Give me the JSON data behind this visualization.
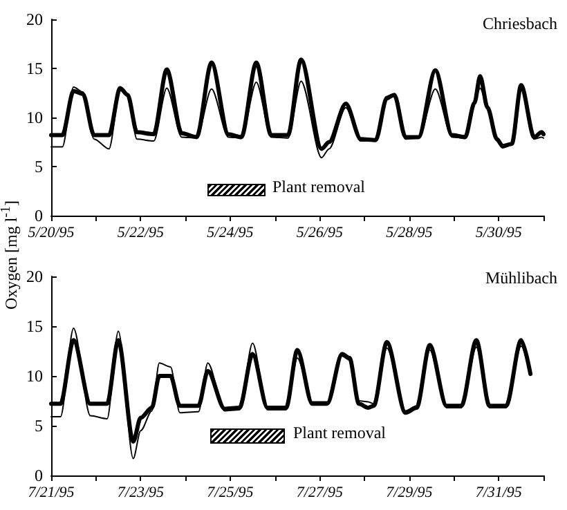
{
  "chart_data": [
    {
      "type": "line",
      "title": "Chriesbach",
      "ylabel": "Oxygen [mg l$^{-1}$]",
      "annotations": [
        "Plant removal"
      ],
      "x": [
        "1995-05-20T00:00",
        "1995-05-20T06:00",
        "1995-05-20T12:00",
        "1995-05-20T17:00",
        "1995-05-20T23:00",
        "1995-05-21T07:00",
        "1995-05-21T13:00",
        "1995-05-21T17:00",
        "1995-05-21T22:00",
        "1995-05-22T07:00",
        "1995-05-22T14:00",
        "1995-05-22T22:00",
        "1995-05-23T06:00",
        "1995-05-23T14:00",
        "1995-05-23T23:00",
        "1995-05-24T06:00",
        "1995-05-24T14:00",
        "1995-05-24T22:00",
        "1995-05-25T07:00",
        "1995-05-25T14:00",
        "1995-05-26T01:00",
        "1995-05-26T05:00",
        "1995-05-26T14:00",
        "1995-05-26T22:00",
        "1995-05-27T06:00",
        "1995-05-27T12:00",
        "1995-05-27T16:00",
        "1995-05-27T22:00",
        "1995-05-28T05:00",
        "1995-05-28T14:00",
        "1995-05-28T23:00",
        "1995-05-29T06:00",
        "1995-05-29T11:00",
        "1995-05-29T14:00",
        "1995-05-29T18:00",
        "1995-05-29T23:00",
        "1995-05-30T02:00",
        "1995-05-30T07:00",
        "1995-05-30T12:00",
        "1995-05-30T19:00",
        "1995-05-30T23:00",
        "1995-05-31T00:00"
      ],
      "series": [
        {
          "color": "#000000",
          "values": [
            8.2,
            8.2,
            12.7,
            12.4,
            8.2,
            8.2,
            13.0,
            12.3,
            8.5,
            8.3,
            14.9,
            8.4,
            8.0,
            15.6,
            8.3,
            8.0,
            15.6,
            8.2,
            8.2,
            15.9,
            6.8,
            7.5,
            11.4,
            7.8,
            7.7,
            12.0,
            12.3,
            8.0,
            8.0,
            14.8,
            8.2,
            8.0,
            11.5,
            14.2,
            11.0,
            7.8,
            7.1,
            7.3,
            13.3,
            8.0,
            8.5,
            8.3
          ]
        },
        {
          "color": "#000000",
          "values": [
            7.0,
            7.0,
            13.1,
            12.6,
            7.8,
            6.8,
            12.8,
            12.2,
            7.8,
            7.6,
            13.0,
            8.0,
            7.9,
            12.9,
            8.0,
            7.9,
            13.6,
            8.0,
            7.9,
            13.7,
            5.9,
            6.8,
            11.0,
            7.6,
            7.6,
            11.8,
            12.2,
            7.8,
            7.9,
            12.9,
            8.0,
            7.9,
            11.7,
            13.0,
            11.2,
            7.6,
            6.9,
            7.2,
            13.0,
            7.8,
            8.0,
            7.9
          ]
        }
      ],
      "xlim": [
        "1995-05-20",
        "1995-05-31"
      ],
      "xticks": [
        {
          "value": "1995-05-20",
          "label": "5/20/95"
        },
        {
          "value": "1995-05-21",
          "label": null
        },
        {
          "value": "1995-05-22",
          "label": "5/22/95"
        },
        {
          "value": "1995-05-23",
          "label": null
        },
        {
          "value": "1995-05-24",
          "label": "5/24/95"
        },
        {
          "value": "1995-05-25",
          "label": null
        },
        {
          "value": "1995-05-26",
          "label": "5/26/95"
        },
        {
          "value": "1995-05-27",
          "label": null
        },
        {
          "value": "1995-05-28",
          "label": "5/28/95"
        },
        {
          "value": "1995-05-29",
          "label": null
        },
        {
          "value": "1995-05-30",
          "label": "5/30/95"
        },
        {
          "value": "1995-05-31",
          "label": null
        }
      ],
      "ylim": [
        0,
        20
      ],
      "yticks": [
        0,
        5,
        10,
        15,
        20
      ],
      "grid": false,
      "marker": "none",
      "line_style": "solid"
    },
    {
      "type": "line",
      "title": "Mühlibach",
      "annotations": [
        "Plant removal"
      ],
      "x": [
        "1995-07-21T00:00",
        "1995-07-21T05:00",
        "1995-07-21T12:00",
        "1995-07-21T21:00",
        "1995-07-22T06:00",
        "1995-07-22T12:00",
        "1995-07-22T20:00",
        "1995-07-23T00:00",
        "1995-07-23T06:00",
        "1995-07-23T10:00",
        "1995-07-23T16:00",
        "1995-07-23T21:00",
        "1995-07-24T07:00",
        "1995-07-24T12:00",
        "1995-07-24T21:00",
        "1995-07-25T05:00",
        "1995-07-25T12:00",
        "1995-07-25T20:00",
        "1995-07-26T06:00",
        "1995-07-26T12:00",
        "1995-07-26T20:00",
        "1995-07-27T04:00",
        "1995-07-27T12:00",
        "1995-07-27T16:00",
        "1995-07-27T21:00",
        "1995-07-28T02:00",
        "1995-07-28T05:00",
        "1995-07-28T12:00",
        "1995-07-28T22:00",
        "1995-07-29T04:00",
        "1995-07-29T11:00",
        "1995-07-29T20:00",
        "1995-07-30T04:00",
        "1995-07-30T12:00",
        "1995-07-30T19:00",
        "1995-07-31T04:00",
        "1995-07-31T12:00",
        "1995-07-31T17:00"
      ],
      "series": [
        {
          "color": "#000000",
          "values": [
            7.2,
            7.2,
            13.6,
            7.2,
            7.2,
            13.6,
            3.4,
            5.8,
            6.8,
            10.0,
            10.0,
            7.0,
            7.0,
            10.5,
            6.7,
            6.8,
            12.2,
            6.8,
            6.8,
            12.6,
            7.2,
            7.2,
            12.2,
            11.8,
            7.2,
            6.8,
            7.0,
            13.4,
            6.3,
            6.8,
            13.1,
            7.0,
            7.0,
            13.6,
            7.0,
            7.0,
            13.6,
            10.2
          ]
        },
        {
          "color": "#000000",
          "values": [
            5.9,
            5.9,
            14.8,
            6.0,
            5.7,
            14.5,
            1.7,
            4.5,
            6.5,
            11.3,
            10.9,
            6.3,
            6.4,
            11.3,
            6.5,
            6.6,
            13.3,
            6.6,
            6.6,
            11.8,
            7.4,
            7.4,
            12.0,
            11.6,
            7.5,
            7.4,
            7.2,
            12.8,
            6.5,
            7.0,
            12.6,
            6.8,
            6.8,
            12.9,
            6.8,
            6.8,
            13.0,
            10.4
          ]
        }
      ],
      "xlim": [
        "1995-07-21",
        "1995-08-01"
      ],
      "xticks": [
        {
          "value": "1995-07-21",
          "label": "7/21/95"
        },
        {
          "value": "1995-07-22",
          "label": null
        },
        {
          "value": "1995-07-23",
          "label": "7/23/95"
        },
        {
          "value": "1995-07-24",
          "label": null
        },
        {
          "value": "1995-07-25",
          "label": "7/25/95"
        },
        {
          "value": "1995-07-26",
          "label": null
        },
        {
          "value": "1995-07-27",
          "label": "7/27/95"
        },
        {
          "value": "1995-07-28",
          "label": null
        },
        {
          "value": "1995-07-29",
          "label": "7/29/95"
        },
        {
          "value": "1995-07-30",
          "label": null
        },
        {
          "value": "1995-07-31",
          "label": "7/31/95"
        },
        {
          "value": "1995-08-01",
          "label": null
        }
      ],
      "ylim": [
        0,
        20
      ],
      "yticks": [
        0,
        5,
        10,
        15,
        20
      ],
      "grid": false,
      "marker": "none",
      "line_style": "solid"
    }
  ]
}
